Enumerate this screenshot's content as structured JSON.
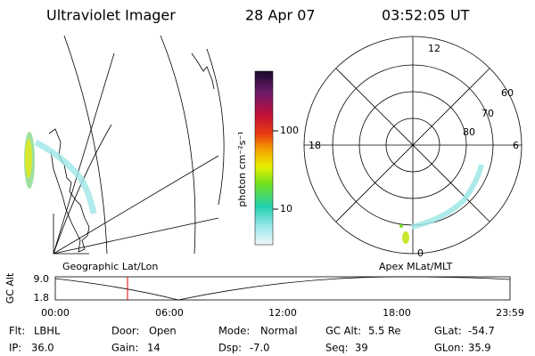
{
  "header": {
    "title": "Ultraviolet Imager",
    "date": "28 Apr 07",
    "time": "03:52:05 UT"
  },
  "colorbar": {
    "label": "photon cm⁻²s⁻¹",
    "ticks": [
      "100",
      "10"
    ]
  },
  "polar": {
    "mlt": [
      "12",
      "18",
      "6",
      "0"
    ],
    "mlat": [
      "60",
      "70",
      "80"
    ]
  },
  "panels": {
    "left": "Geographic Lat/Lon",
    "right": "Apex MLat/MLT"
  },
  "altitude": {
    "label": "GC Alt",
    "yticks": [
      "9.0",
      "1.8"
    ],
    "xticks": [
      "00:00",
      "06:00",
      "12:00",
      "18:00",
      "23:59"
    ]
  },
  "footer": {
    "rows": [
      [
        [
          "Flt:",
          "LBHL"
        ],
        [
          "Door:",
          "Open"
        ],
        [
          "Mode:",
          "Normal"
        ],
        [
          "GC Alt:",
          "5.5 Re"
        ],
        [
          "GLat:",
          "-54.7"
        ]
      ],
      [
        [
          "IP:",
          "36.0"
        ],
        [
          "Gain:",
          "14"
        ],
        [
          "Dsp:",
          "-7.0"
        ],
        [
          "Seq:",
          "39"
        ],
        [
          "GLon:",
          "35.9"
        ]
      ]
    ]
  }
}
